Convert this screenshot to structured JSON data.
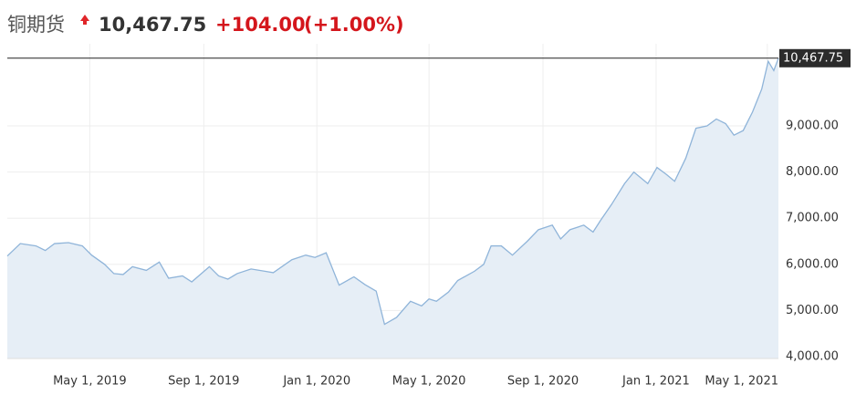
{
  "header": {
    "name": "铜期货",
    "change": "+104.00",
    "change_pct": "(+1.00%)"
  },
  "chart_data": {
    "type": "area",
    "color": "#8fb4d9",
    "fill": "#e6eef6",
    "grid": true,
    "last_price": {
      "value": 10467.75,
      "label": "10,467.75"
    },
    "xlim": [
      "2019-02-01",
      "2021-05-13"
    ],
    "ylim": [
      3960,
      10780
    ],
    "xticks": [
      {
        "value": "2019-05-01",
        "label": "May 1, 2019"
      },
      {
        "value": "2019-09-01",
        "label": "Sep 1, 2019"
      },
      {
        "value": "2020-01-01",
        "label": "Jan 1, 2020"
      },
      {
        "value": "2020-05-01",
        "label": "May 1, 2020"
      },
      {
        "value": "2020-09-01",
        "label": "Sep 1, 2020"
      },
      {
        "value": "2021-01-01",
        "label": "Jan 1, 2021"
      },
      {
        "value": "2021-05-01",
        "label": "May 1, 2021"
      }
    ],
    "yticks": [
      {
        "value": 4000,
        "label": "4,000.00"
      },
      {
        "value": 5000,
        "label": "5,000.00"
      },
      {
        "value": 6000,
        "label": "6,000.00"
      },
      {
        "value": 7000,
        "label": "7,000.00"
      },
      {
        "value": 8000,
        "label": "8,000.00"
      },
      {
        "value": 9000,
        "label": "9,000.00"
      }
    ],
    "x": [
      "2019-02-01",
      "2019-02-15",
      "2019-03-04",
      "2019-03-14",
      "2019-03-24",
      "2019-04-08",
      "2019-04-23",
      "2019-05-03",
      "2019-05-17",
      "2019-05-27",
      "2019-06-06",
      "2019-06-16",
      "2019-07-01",
      "2019-07-15",
      "2019-07-25",
      "2019-08-09",
      "2019-08-19",
      "2019-09-07",
      "2019-09-17",
      "2019-09-27",
      "2019-10-07",
      "2019-10-22",
      "2019-11-06",
      "2019-11-15",
      "2019-12-05",
      "2019-12-20",
      "2019-12-30",
      "2020-01-11",
      "2020-01-25",
      "2020-02-10",
      "2020-02-22",
      "2020-03-05",
      "2020-03-14",
      "2020-03-27",
      "2020-04-11",
      "2020-04-23",
      "2020-05-01",
      "2020-05-09",
      "2020-05-22",
      "2020-06-01",
      "2020-06-19",
      "2020-06-29",
      "2020-07-07",
      "2020-07-18",
      "2020-07-30",
      "2020-08-15",
      "2020-08-27",
      "2020-09-11",
      "2020-09-20",
      "2020-09-30",
      "2020-10-15",
      "2020-10-25",
      "2020-11-02",
      "2020-11-14",
      "2020-11-28",
      "2020-12-08",
      "2020-12-23",
      "2021-01-02",
      "2021-01-12",
      "2021-01-21",
      "2021-02-02",
      "2021-02-13",
      "2021-02-25",
      "2021-03-07",
      "2021-03-17",
      "2021-03-26",
      "2021-04-05",
      "2021-04-15",
      "2021-04-25",
      "2021-05-02",
      "2021-05-08",
      "2021-05-13"
    ],
    "values": [
      6180,
      6450,
      6400,
      6300,
      6450,
      6470,
      6400,
      6200,
      6000,
      5800,
      5780,
      5950,
      5870,
      6050,
      5700,
      5750,
      5620,
      5950,
      5750,
      5680,
      5800,
      5900,
      5850,
      5820,
      6100,
      6200,
      6150,
      6250,
      5550,
      5730,
      5560,
      5420,
      4700,
      4850,
      5200,
      5100,
      5250,
      5200,
      5400,
      5650,
      5850,
      6000,
      6400,
      6400,
      6200,
      6500,
      6750,
      6850,
      6550,
      6750,
      6850,
      6700,
      6950,
      7300,
      7750,
      8000,
      7750,
      8100,
      7950,
      7800,
      8300,
      8950,
      9000,
      9150,
      9050,
      8800,
      8900,
      9300,
      9800,
      10400,
      10200,
      10467.75
    ]
  }
}
